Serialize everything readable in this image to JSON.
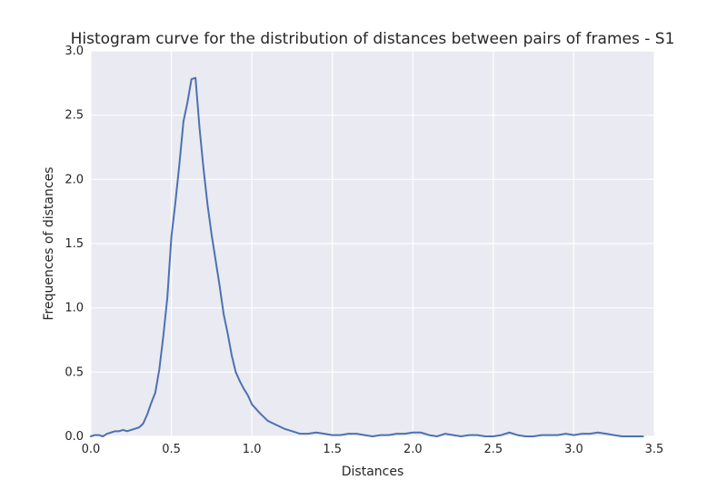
{
  "chart_data": {
    "type": "line",
    "title": "Histogram curve for the distribution of distances between pairs of frames - S1",
    "xlabel": "Distances",
    "ylabel": "Frequences of distances",
    "xlim": [
      0,
      3.5
    ],
    "ylim": [
      0,
      3.0
    ],
    "x_ticks": [
      "0.0",
      "0.5",
      "1.0",
      "1.5",
      "2.0",
      "2.5",
      "3.0",
      "3.5"
    ],
    "y_ticks": [
      "0.0",
      "0.5",
      "1.0",
      "1.5",
      "2.0",
      "2.5",
      "3.0"
    ],
    "grid": true,
    "background_color": "#EAEAF2",
    "grid_color": "#FFFFFF",
    "line_color": "#4C72B0",
    "series": [
      {
        "x": [
          0.0,
          0.025,
          0.05,
          0.075,
          0.1,
          0.125,
          0.15,
          0.175,
          0.2,
          0.225,
          0.25,
          0.275,
          0.3,
          0.325,
          0.35,
          0.375,
          0.4,
          0.425,
          0.45,
          0.475,
          0.5,
          0.525,
          0.55,
          0.575,
          0.6,
          0.625,
          0.65,
          0.675,
          0.7,
          0.725,
          0.75,
          0.775,
          0.8,
          0.825,
          0.85,
          0.875,
          0.9,
          0.925,
          0.95,
          0.975,
          1.0,
          1.05,
          1.1,
          1.15,
          1.2,
          1.25,
          1.3,
          1.35,
          1.4,
          1.45,
          1.5,
          1.55,
          1.6,
          1.65,
          1.7,
          1.75,
          1.8,
          1.85,
          1.9,
          1.95,
          2.0,
          2.05,
          2.1,
          2.15,
          2.2,
          2.25,
          2.3,
          2.35,
          2.4,
          2.45,
          2.5,
          2.55,
          2.6,
          2.65,
          2.7,
          2.75,
          2.8,
          2.85,
          2.9,
          2.95,
          3.0,
          3.05,
          3.1,
          3.15,
          3.2,
          3.25,
          3.3,
          3.35,
          3.4,
          3.43
        ],
        "y": [
          0.0,
          0.01,
          0.01,
          0.0,
          0.02,
          0.03,
          0.04,
          0.04,
          0.05,
          0.04,
          0.05,
          0.06,
          0.07,
          0.1,
          0.17,
          0.26,
          0.34,
          0.52,
          0.78,
          1.08,
          1.55,
          1.82,
          2.12,
          2.45,
          2.6,
          2.78,
          2.79,
          2.4,
          2.08,
          1.8,
          1.57,
          1.37,
          1.17,
          0.95,
          0.8,
          0.63,
          0.5,
          0.43,
          0.37,
          0.32,
          0.25,
          0.18,
          0.12,
          0.09,
          0.06,
          0.04,
          0.02,
          0.02,
          0.03,
          0.02,
          0.01,
          0.01,
          0.02,
          0.02,
          0.01,
          0.0,
          0.01,
          0.01,
          0.02,
          0.02,
          0.03,
          0.03,
          0.01,
          0.0,
          0.02,
          0.01,
          0.0,
          0.01,
          0.01,
          0.0,
          0.0,
          0.01,
          0.03,
          0.01,
          0.0,
          0.0,
          0.01,
          0.01,
          0.01,
          0.02,
          0.01,
          0.02,
          0.02,
          0.03,
          0.02,
          0.01,
          0.0,
          0.0,
          0.0,
          0.0
        ]
      }
    ]
  }
}
